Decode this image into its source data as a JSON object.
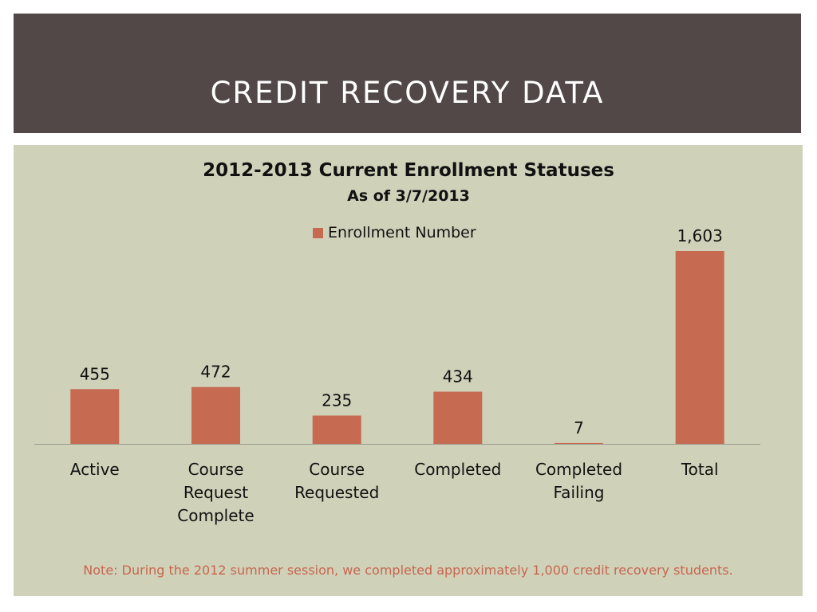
{
  "slide": {
    "title": "CREDIT RECOVERY DATA",
    "note": "Note: During the 2012 summer session, we completed approximately 1,000 credit recovery students."
  },
  "chart_data": {
    "type": "bar",
    "title": "2012-2013 Current Enrollment Statuses",
    "subtitle": "As of 3/7/2013",
    "categories": [
      [
        "Active"
      ],
      [
        "Course",
        "Request",
        "Complete"
      ],
      [
        "Course",
        "Requested"
      ],
      [
        "Completed"
      ],
      [
        "Completed",
        "Failing"
      ],
      [
        "Total"
      ]
    ],
    "series": [
      {
        "name": "Enrollment Number",
        "values": [
          455,
          472,
          235,
          434,
          7,
          1603
        ],
        "labels": [
          "455",
          "472",
          "235",
          "434",
          "7",
          "1,603"
        ],
        "color": "#c66a52"
      }
    ],
    "ylim": [
      0,
      1603
    ],
    "legend": "top-center",
    "grid": false
  }
}
